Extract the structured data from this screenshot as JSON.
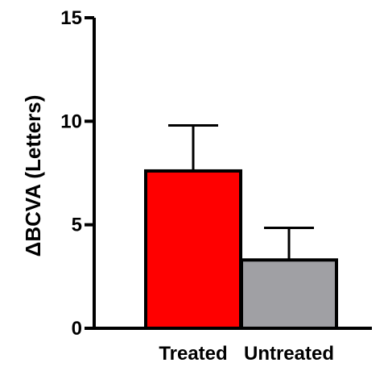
{
  "chart_data": {
    "type": "bar",
    "categories": [
      "Treated",
      "Untreated"
    ],
    "values": [
      7.6,
      3.3
    ],
    "errors": [
      2.2,
      1.55
    ],
    "ylabel": "ΔBCVA (Letters)",
    "xlabel": "",
    "ylim": [
      0,
      15
    ],
    "yticks": [
      0,
      5,
      10,
      15
    ],
    "ytick_labels": [
      "0",
      "5",
      "10",
      "15"
    ],
    "grid": false,
    "legend": "none",
    "colors": [
      "#ff0000",
      "#a0a0a4"
    ]
  }
}
